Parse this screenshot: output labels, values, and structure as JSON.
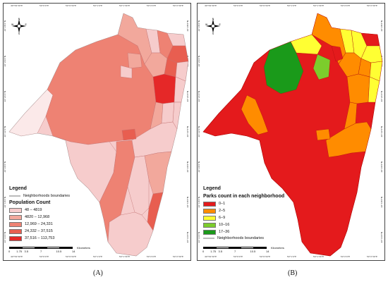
{
  "panel_a": {
    "caption": "(A)",
    "legend": {
      "title": "Legend",
      "boundary_label": "Neighborhoods boundaries",
      "subtitle": "Population Count",
      "classes": [
        {
          "label": "48 – 4819",
          "color": "#f6cccc"
        },
        {
          "label": "4820 – 12,968",
          "color": "#f2a89c"
        },
        {
          "label": "12,969 – 24,331",
          "color": "#ee8273"
        },
        {
          "label": "24,332 – 37,515",
          "color": "#e85e50"
        },
        {
          "label": "37,516 – 113,753",
          "color": "#e52828"
        }
      ]
    },
    "scale": {
      "labels": [
        "0",
        "1.75",
        "3.5",
        "7",
        "10.5",
        "14"
      ],
      "unit": "Kilometers"
    },
    "ticks_x": [
      "49°59'30\"E",
      "50°0'0\"E",
      "50°0'30\"E",
      "50°1'0\"E",
      "50°1'30\"E",
      "50°2'0\"E",
      "50°2'30\"E"
    ],
    "ticks_y": [
      "26°28'0\"N",
      "26°26'0\"N",
      "26°24'0\"N",
      "26°22'0\"N",
      "26°20'0\"N",
      "26°18'0\"N",
      "26°16'0\"N"
    ]
  },
  "panel_b": {
    "caption": "(B)",
    "legend": {
      "title": "Legend",
      "subtitle": "Parks count in each neighborhood",
      "boundary_label": "Neighborhoods boundaries",
      "classes": [
        {
          "label": "0–1",
          "color": "#e41a1c"
        },
        {
          "label": "2–5",
          "color": "#ff8c00"
        },
        {
          "label": "6–9",
          "color": "#ffff33"
        },
        {
          "label": "10–16",
          "color": "#7ccd2c"
        },
        {
          "label": "17–36",
          "color": "#1a9a1a"
        }
      ]
    },
    "scale": {
      "labels": [
        "0",
        "1.75",
        "3.5",
        "7",
        "10.5",
        "14"
      ],
      "unit": "Kilometers"
    },
    "ticks_x": [
      "49°59'30\"E",
      "50°0'0\"E",
      "50°0'30\"E",
      "50°1'0\"E",
      "50°1'30\"E",
      "50°2'0\"E",
      "50°2'30\"E"
    ],
    "ticks_y": [
      "26°28'0\"N",
      "26°26'0\"N",
      "26°24'0\"N",
      "26°22'0\"N",
      "26°20'0\"N",
      "26°18'0\"N",
      "26°16'0\"N"
    ]
  },
  "north_arrow": {
    "n": "N",
    "s": "S",
    "e": "E",
    "w": "W"
  }
}
